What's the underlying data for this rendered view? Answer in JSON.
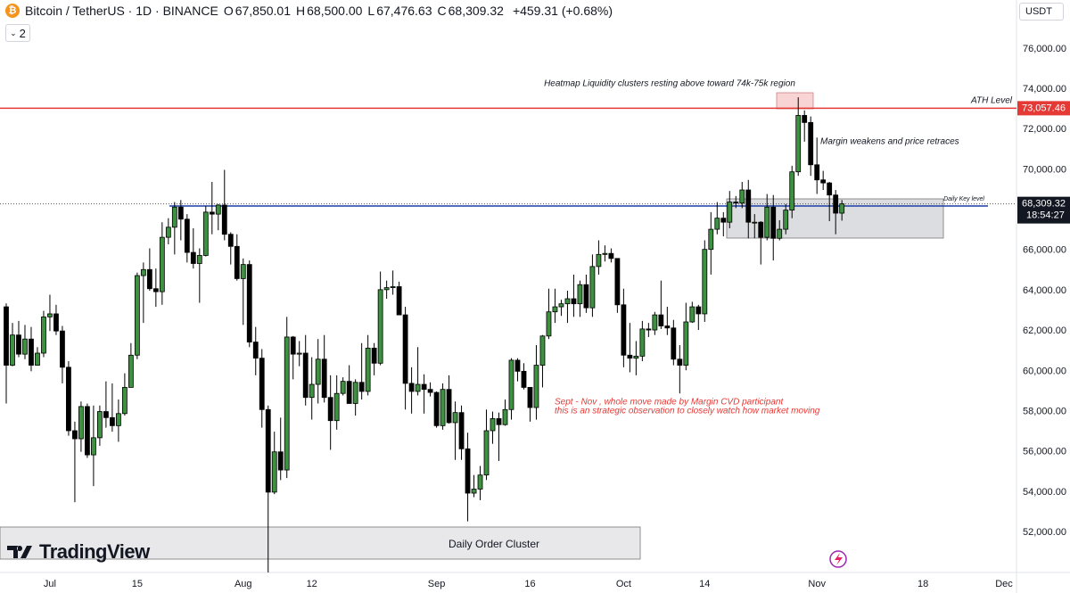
{
  "header": {
    "symbol": "Bitcoin / TetherUS · 1D · BINANCE",
    "ohlc": [
      {
        "key": "O",
        "value": "67,850.01"
      },
      {
        "key": "H",
        "value": "68,500.00"
      },
      {
        "key": "L",
        "value": "67,476.63"
      },
      {
        "key": "C",
        "value": "68,309.32"
      }
    ],
    "change": "+459.31 (+0.68%)",
    "indicators": "2",
    "currency": "USDT"
  },
  "branding": "TradingView",
  "chart_data": {
    "type": "candlestick",
    "colors": {
      "up": "#3d9140",
      "down": "#000000",
      "wick": "#000000"
    },
    "x": [
      "Jun 24",
      "Jun 25",
      "Jun 26",
      "Jun 27",
      "Jun 28",
      "Jun 29",
      "Jun 30",
      "Jul 1",
      "Jul 2",
      "Jul 3",
      "Jul 4",
      "Jul 5",
      "Jul 6",
      "Jul 7",
      "Jul 8",
      "Jul 9",
      "Jul 10",
      "Jul 11",
      "Jul 12",
      "Jul 13",
      "Jul 14",
      "Jul 15",
      "Jul 16",
      "Jul 17",
      "Jul 18",
      "Jul 19",
      "Jul 20",
      "Jul 21",
      "Jul 22",
      "Jul 23",
      "Jul 24",
      "Jul 25",
      "Jul 26",
      "Jul 27",
      "Jul 28",
      "Jul 29",
      "Jul 30",
      "Jul 31",
      "Aug 1",
      "Aug 2",
      "Aug 3",
      "Aug 4",
      "Aug 5",
      "Aug 6",
      "Aug 7",
      "Aug 8",
      "Aug 9",
      "Aug 10",
      "Aug 11",
      "Aug 12",
      "Aug 13",
      "Aug 14",
      "Aug 15",
      "Aug 16",
      "Aug 17",
      "Aug 18",
      "Aug 19",
      "Aug 20",
      "Aug 21",
      "Aug 22",
      "Aug 23",
      "Aug 24",
      "Aug 25",
      "Aug 26",
      "Aug 27",
      "Aug 28",
      "Aug 29",
      "Aug 30",
      "Aug 31",
      "Sep 1",
      "Sep 2",
      "Sep 3",
      "Sep 4",
      "Sep 5",
      "Sep 6",
      "Sep 7",
      "Sep 8",
      "Sep 9",
      "Sep 10",
      "Sep 11",
      "Sep 12",
      "Sep 13",
      "Sep 14",
      "Sep 15",
      "Sep 16",
      "Sep 17",
      "Sep 18",
      "Sep 19",
      "Sep 20",
      "Sep 21",
      "Sep 22",
      "Sep 23",
      "Sep 24",
      "Sep 25",
      "Sep 26",
      "Sep 27",
      "Sep 28",
      "Sep 29",
      "Sep 30",
      "Oct 1",
      "Oct 2",
      "Oct 3",
      "Oct 4",
      "Oct 5",
      "Oct 6",
      "Oct 7",
      "Oct 8",
      "Oct 9",
      "Oct 10",
      "Oct 11",
      "Oct 12",
      "Oct 13",
      "Oct 14",
      "Oct 15",
      "Oct 16",
      "Oct 17",
      "Oct 18",
      "Oct 19",
      "Oct 20",
      "Oct 21",
      "Oct 22",
      "Oct 23",
      "Oct 24",
      "Oct 25",
      "Oct 26",
      "Oct 27",
      "Oct 28",
      "Oct 29",
      "Oct 30",
      "Oct 31",
      "Nov 1",
      "Nov 2",
      "Nov 3",
      "Nov 4",
      "Nov 5"
    ],
    "open": [
      63200,
      60300,
      61800,
      60850,
      61600,
      60300,
      60900,
      62700,
      62850,
      62000,
      60200,
      57050,
      56650,
      58250,
      55850,
      56700,
      58000,
      57700,
      57300,
      57900,
      59200,
      60800,
      64750,
      65050,
      64100,
      63950,
      66650,
      67150,
      68150,
      67550,
      65900,
      65350,
      65750,
      67900,
      67800,
      68250,
      66800,
      66200,
      64600,
      65300,
      61450,
      60650,
      58100,
      54000,
      56000,
      55100,
      61700,
      60850,
      60900,
      58700,
      59350,
      60600,
      58700,
      57550,
      58900,
      59500,
      58400,
      59450,
      59000,
      61150,
      60400,
      64050,
      64150,
      64200,
      62800,
      59400,
      59000,
      59350,
      59100,
      58950,
      57300,
      59100,
      57450,
      57950,
      56150,
      53950,
      54150,
      54850,
      57050,
      57650,
      57350,
      58100,
      60550,
      60000,
      59200,
      58200,
      60300,
      61750,
      62950,
      63200,
      63350,
      63600,
      63350,
      64300,
      63150,
      65200,
      65800,
      65850,
      65600,
      63300,
      60800,
      60650,
      60750,
      62100,
      62050,
      62800,
      62250,
      62150,
      60600,
      60300,
      62450,
      63200,
      62850,
      66050,
      67050,
      67600,
      67400,
      68400,
      68350,
      69000,
      67400,
      67400,
      66650,
      68150,
      66600,
      67050,
      68000,
      69900,
      72700,
      72350,
      70250,
      69500,
      69350,
      68750,
      67850.01
    ],
    "high": [
      63370,
      62400,
      62500,
      62300,
      62200,
      61200,
      63000,
      63800,
      63300,
      62250,
      60500,
      57500,
      58500,
      58400,
      58300,
      58300,
      59500,
      59400,
      58600,
      59900,
      61400,
      64900,
      65400,
      66100,
      65100,
      67400,
      67600,
      68400,
      68500,
      67800,
      67100,
      66100,
      68200,
      69400,
      68300,
      70000,
      66900,
      66800,
      65600,
      65500,
      62200,
      61100,
      58300,
      57000,
      57700,
      62700,
      61750,
      61500,
      61800,
      60700,
      61600,
      61800,
      59800,
      59800,
      59700,
      60300,
      59600,
      61400,
      61800,
      61400,
      64950,
      64500,
      65000,
      64450,
      63200,
      60200,
      61200,
      59850,
      59450,
      59000,
      59400,
      59800,
      58500,
      58300,
      56950,
      54850,
      55300,
      58100,
      58000,
      57950,
      58600,
      60650,
      60650,
      60400,
      59200,
      61300,
      61800,
      64100,
      64100,
      63550,
      64000,
      64800,
      64500,
      64800,
      65800,
      66500,
      66250,
      66100,
      65600,
      64100,
      62400,
      61500,
      62500,
      62400,
      62950,
      64500,
      63200,
      62550,
      61300,
      63400,
      63450,
      63300,
      66500,
      67900,
      68400,
      67900,
      68950,
      68700,
      69400,
      69500,
      67800,
      67450,
      68800,
      68750,
      67500,
      68300,
      70200,
      73600,
      72950,
      72650,
      71600,
      69950,
      69400,
      69000,
      68500
    ],
    "low": [
      58400,
      60250,
      60700,
      60600,
      60000,
      60300,
      60700,
      62000,
      61800,
      59400,
      56800,
      53500,
      56000,
      55700,
      54300,
      56300,
      57200,
      57000,
      56500,
      57800,
      59200,
      60600,
      62400,
      64000,
      63200,
      63300,
      66300,
      65800,
      66500,
      65400,
      65100,
      63400,
      65700,
      66800,
      67000,
      66500,
      65300,
      64500,
      62300,
      61200,
      59800,
      57200,
      49000,
      53900,
      54600,
      54700,
      59600,
      60250,
      58300,
      57600,
      58400,
      58450,
      56100,
      57100,
      58800,
      58400,
      57800,
      58600,
      58800,
      59800,
      60300,
      63600,
      63800,
      62800,
      58100,
      57900,
      58800,
      57900,
      58750,
      57200,
      57100,
      57400,
      55600,
      55600,
      52550,
      53750,
      53600,
      54600,
      56400,
      55550,
      57300,
      57600,
      59500,
      59100,
      57500,
      57600,
      59200,
      61600,
      62400,
      62750,
      62400,
      62700,
      62700,
      62900,
      62700,
      64800,
      65450,
      65400,
      62900,
      60200,
      59950,
      59800,
      60500,
      61700,
      61800,
      62100,
      61800,
      60300,
      58900,
      60050,
      62400,
      62050,
      62450,
      64800,
      66800,
      66700,
      67100,
      68100,
      68100,
      66600,
      66600,
      65300,
      66500,
      65500,
      66500,
      66800,
      67600,
      69700,
      71400,
      69700,
      68800,
      69000,
      67450,
      66800,
      67476.63
    ],
    "close": [
      60300,
      61800,
      60850,
      61600,
      60300,
      60900,
      62700,
      62850,
      62000,
      60200,
      57050,
      56650,
      58250,
      55850,
      56700,
      58000,
      57700,
      57300,
      57900,
      59200,
      60800,
      64750,
      65050,
      64100,
      63950,
      66650,
      67150,
      68150,
      67550,
      65900,
      65350,
      65750,
      67900,
      67800,
      68250,
      66800,
      66200,
      64600,
      65300,
      61450,
      60650,
      58100,
      54000,
      56000,
      55100,
      61700,
      60850,
      60900,
      58700,
      59350,
      60600,
      58700,
      57550,
      58900,
      59500,
      58400,
      59450,
      59000,
      61150,
      60400,
      64050,
      64150,
      64200,
      62800,
      59400,
      59000,
      59350,
      59100,
      58950,
      57300,
      59100,
      57450,
      57950,
      56150,
      53950,
      54150,
      54850,
      57050,
      57650,
      57350,
      58100,
      60550,
      60000,
      59200,
      58200,
      60300,
      61750,
      62950,
      63200,
      63350,
      63600,
      63350,
      64300,
      63150,
      65200,
      65800,
      65850,
      65600,
      63300,
      60800,
      60650,
      60750,
      62100,
      62050,
      62800,
      62250,
      62150,
      60600,
      60300,
      62450,
      63200,
      62850,
      66050,
      67050,
      67600,
      67400,
      68400,
      68350,
      69000,
      67400,
      67400,
      66650,
      68150,
      66600,
      67050,
      68000,
      69900,
      72700,
      72350,
      70250,
      69500,
      69350,
      68750,
      67850.01,
      68309.32
    ],
    "xlim": [
      "Jun 23",
      "Dec 3"
    ],
    "xticks": [
      {
        "value": "Jul 1",
        "label": "Jul"
      },
      {
        "value": "Jul 15",
        "label": "15"
      },
      {
        "value": "Aug 1",
        "label": "Aug"
      },
      {
        "value": "Aug 12",
        "label": "12"
      },
      {
        "value": "Sep 1",
        "label": "Sep"
      },
      {
        "value": "Sep 16",
        "label": "16"
      },
      {
        "value": "Oct 1",
        "label": "Oct"
      },
      {
        "value": "Oct 14",
        "label": "14"
      },
      {
        "value": "Nov 1",
        "label": "Nov"
      },
      {
        "value": "Nov 18",
        "label": "18"
      },
      {
        "value": "Dec 1",
        "label": "Dec"
      }
    ],
    "ylim": [
      50100,
      78430
    ],
    "yticks": [
      {
        "value": 52000,
        "label": "52,000.00"
      },
      {
        "value": 54000,
        "label": "54,000.00"
      },
      {
        "value": 56000,
        "label": "56,000.00"
      },
      {
        "value": 58000,
        "label": "58,000.00"
      },
      {
        "value": 60000,
        "label": "60,000.00"
      },
      {
        "value": 62000,
        "label": "62,000.00"
      },
      {
        "value": 64000,
        "label": "64,000.00"
      },
      {
        "value": 66000,
        "label": "66,000.00"
      },
      {
        "value": 68000,
        "label": "68,000.00"
      },
      {
        "value": 70000,
        "label": "70,000.00"
      },
      {
        "value": 72000,
        "label": "72,000.00"
      },
      {
        "value": 74000,
        "label": "74,000.00"
      },
      {
        "value": 76000,
        "label": "76,000.00"
      }
    ],
    "grid": false,
    "ath_level": {
      "value": 73057.46,
      "label": "73,057.46"
    },
    "last_price": {
      "value": 68309.32,
      "label": "68,309.32"
    },
    "countdown": "18:54:27",
    "annotations": {
      "heatmap": "Heatmap Liquidity clusters resting above toward 74k-75k region",
      "ath": "ATH Level",
      "margin": "Margin weakens and price retraces",
      "key_level": "Daily Key level",
      "observation": [
        "Sept - Nov , whole move made by Margin CVD participant",
        "this is an strategic observation to closely watch how market moving"
      ],
      "order_cluster": "Daily Order Cluster"
    }
  }
}
